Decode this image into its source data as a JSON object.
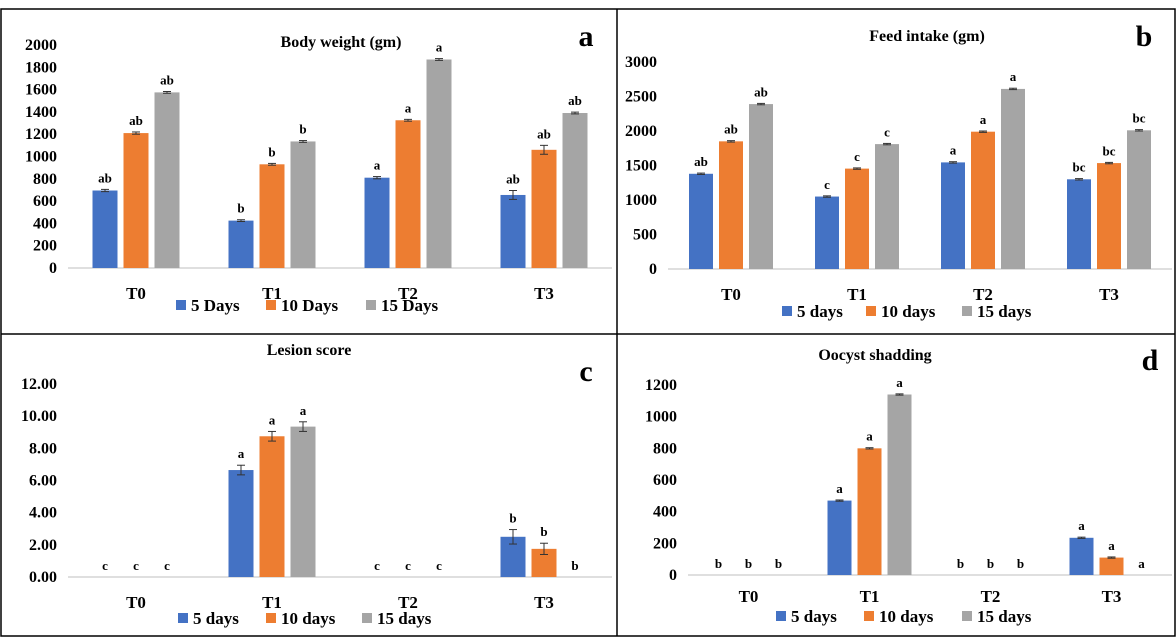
{
  "colors": {
    "blue": "#4472C4",
    "orange": "#ED7D31",
    "gray": "#A5A5A5",
    "border": "#000000",
    "axis": "#BFBFBF"
  },
  "chart_data": [
    {
      "type": "bar",
      "title": "Body weight (gm)",
      "panel_letter": "a",
      "categories": [
        "T0",
        "T1",
        "T2",
        "T3"
      ],
      "ylim": [
        0,
        2000
      ],
      "yticks": [
        "2000",
        "1800",
        "1600",
        "1400",
        "1200",
        "1000",
        "800",
        "600",
        "400",
        "200",
        "0"
      ],
      "series": [
        {
          "name": "5 Days",
          "values": [
            695,
            425,
            810,
            655
          ],
          "errors": [
            10,
            8,
            10,
            40
          ],
          "labels": [
            "ab",
            "b",
            "a",
            "ab"
          ]
        },
        {
          "name": "10 Days",
          "values": [
            1210,
            930,
            1325,
            1060
          ],
          "errors": [
            10,
            8,
            8,
            40
          ],
          "labels": [
            "ab",
            "b",
            "a",
            "ab"
          ]
        },
        {
          "name": "15 Days",
          "values": [
            1575,
            1135,
            1870,
            1390
          ],
          "errors": [
            8,
            8,
            8,
            8
          ],
          "labels": [
            "ab",
            "b",
            "a",
            "ab"
          ]
        }
      ],
      "legend": "bottom"
    },
    {
      "type": "bar",
      "title": "Feed intake (gm)",
      "panel_letter": "b",
      "categories": [
        "T0",
        "T1",
        "T2",
        "T3"
      ],
      "ylim": [
        0,
        3000
      ],
      "yticks": [
        "3000",
        "2500",
        "2000",
        "1500",
        "1000",
        "500",
        "0"
      ],
      "series": [
        {
          "name": "5 days",
          "values": [
            1380,
            1050,
            1545,
            1300
          ],
          "errors": [
            10,
            10,
            10,
            10
          ],
          "labels": [
            "ab",
            "c",
            "a",
            "bc"
          ]
        },
        {
          "name": "10 days",
          "values": [
            1850,
            1455,
            1990,
            1535
          ],
          "errors": [
            10,
            10,
            10,
            10
          ],
          "labels": [
            "ab",
            "c",
            "a",
            "bc"
          ]
        },
        {
          "name": "15 days",
          "values": [
            2390,
            1810,
            2610,
            2010
          ],
          "errors": [
            10,
            10,
            10,
            10
          ],
          "labels": [
            "ab",
            "c",
            "a",
            "bc"
          ]
        }
      ],
      "legend": "bottom"
    },
    {
      "type": "bar",
      "title": "Lesion score",
      "panel_letter": "c",
      "categories": [
        "T0",
        "T1",
        "T2",
        "T3"
      ],
      "ylim": [
        0,
        12
      ],
      "yticks": [
        "12.00",
        "10.00",
        "8.00",
        "6.00",
        "4.00",
        "2.00",
        "0.00"
      ],
      "series": [
        {
          "name": "5 days",
          "values": [
            0,
            6.65,
            0,
            2.5
          ],
          "errors": [
            0,
            0.3,
            0,
            0.45
          ],
          "labels": [
            "c",
            "a",
            "c",
            "b"
          ]
        },
        {
          "name": "10 days",
          "values": [
            0,
            8.75,
            0,
            1.75
          ],
          "errors": [
            0,
            0.3,
            0,
            0.35
          ],
          "labels": [
            "c",
            "a",
            "c",
            "b"
          ]
        },
        {
          "name": "15 days",
          "values": [
            0,
            9.35,
            0,
            0
          ],
          "errors": [
            0,
            0.3,
            0,
            0
          ],
          "labels": [
            "c",
            "a",
            "c",
            "b"
          ]
        }
      ],
      "legend": "bottom"
    },
    {
      "type": "bar",
      "title": "Oocyst shadding",
      "panel_letter": "d",
      "categories": [
        "T0",
        "T1",
        "T2",
        "T3"
      ],
      "ylim": [
        0,
        1200
      ],
      "yticks": [
        "1200",
        "1000",
        "800",
        "600",
        "400",
        "200",
        "0"
      ],
      "series": [
        {
          "name": "5 days",
          "values": [
            0,
            470,
            0,
            235
          ],
          "errors": [
            0,
            4,
            0,
            4
          ],
          "labels": [
            "b",
            "a",
            "b",
            "a"
          ]
        },
        {
          "name": "10 days",
          "values": [
            0,
            800,
            0,
            110
          ],
          "errors": [
            0,
            4,
            0,
            4
          ],
          "labels": [
            "b",
            "a",
            "b",
            "a"
          ]
        },
        {
          "name": "15 days",
          "values": [
            0,
            1140,
            0,
            0
          ],
          "errors": [
            0,
            4,
            0,
            0
          ],
          "labels": [
            "b",
            "a",
            "b",
            "a"
          ]
        }
      ],
      "legend": "bottom"
    }
  ]
}
